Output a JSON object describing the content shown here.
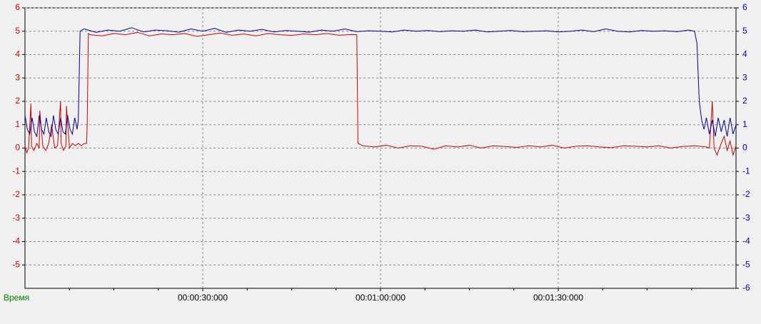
{
  "chart_data": {
    "type": "line",
    "x_label": "Время",
    "xlim": [
      0,
      120
    ],
    "xticks": [
      {
        "value": 30,
        "label": "00:00:30:000"
      },
      {
        "value": 60,
        "label": "00:01:00:000"
      },
      {
        "value": 90,
        "label": "00:01:30:000"
      }
    ],
    "xminorticks": [
      7.5,
      15,
      22.5,
      37.5,
      45,
      52.5,
      67.5,
      75,
      82.5,
      97.5,
      105,
      112.5
    ],
    "ylim": [
      -6,
      6
    ],
    "yticks": [
      6,
      5,
      4,
      3,
      2,
      1,
      0,
      -1,
      -2,
      -3,
      -4,
      -5
    ],
    "y2lim": [
      -6,
      6
    ],
    "y2ticks": [
      6,
      5,
      4,
      3,
      2,
      1,
      0,
      -1,
      -2,
      -3,
      -4,
      -5,
      -6
    ],
    "ycolor": "#cc0000",
    "y2color": "#0000b0",
    "xlabelcolor": "#008000",
    "grid": true,
    "series": [
      {
        "color": "#cc0000",
        "axis": "y",
        "x": [
          0,
          0.3,
          0.6,
          1.0,
          1.1,
          1.5,
          2.0,
          2.4,
          2.5,
          3.0,
          3.5,
          4.0,
          4.5,
          5.0,
          5.5,
          6.0,
          6.1,
          6.5,
          6.9,
          7.0,
          7.5,
          8.0,
          8.5,
          9.0,
          9.5,
          10.0,
          10.4,
          10.5,
          10.7,
          11,
          13,
          15,
          17,
          19,
          21,
          23,
          25,
          27,
          29,
          31,
          33,
          35,
          37,
          39,
          41,
          43,
          45,
          47,
          49,
          51,
          53,
          55,
          56.0,
          56.2,
          57,
          59,
          61,
          63,
          65,
          67,
          69,
          71,
          73,
          75,
          77,
          79,
          81,
          83,
          85,
          87,
          89,
          91,
          93,
          95,
          97,
          99,
          101,
          103,
          105,
          107,
          109,
          111,
          113,
          115,
          115.5,
          116,
          116.3,
          116.8,
          117.5,
          118,
          118.5,
          119,
          119.5,
          120
        ],
        "values": [
          0.1,
          -0.2,
          0.0,
          1.9,
          0.1,
          -0.1,
          0.2,
          0.0,
          1.6,
          0.1,
          -0.1,
          0.2,
          1.0,
          0.0,
          0.1,
          2.0,
          0.2,
          -0.1,
          0.1,
          1.8,
          0.0,
          0.2,
          0.1,
          0.2,
          0.1,
          0.2,
          0.2,
          1.0,
          4.9,
          4.85,
          4.8,
          4.9,
          4.85,
          4.95,
          4.8,
          4.88,
          4.85,
          4.9,
          4.78,
          4.85,
          4.92,
          4.83,
          4.88,
          4.8,
          4.9,
          4.85,
          4.82,
          4.88,
          4.85,
          4.9,
          4.83,
          4.86,
          4.85,
          0.2,
          0.1,
          0.05,
          0.12,
          0.0,
          0.1,
          0.08,
          -0.05,
          0.1,
          0.05,
          0.12,
          0.0,
          0.1,
          0.07,
          0.03,
          0.1,
          0.05,
          0.12,
          0.0,
          0.08,
          0.1,
          0.05,
          0.02,
          0.1,
          0.08,
          0.05,
          0.1,
          0.0,
          0.07,
          0.1,
          0.05,
          0.0,
          2.0,
          0.0,
          -0.3,
          0.2,
          0.5,
          -0.1,
          0.3,
          -0.3,
          0.1
        ]
      },
      {
        "color": "#000099",
        "axis": "y2",
        "x": [
          0,
          0.4,
          0.8,
          1.2,
          1.6,
          2.0,
          2.4,
          2.8,
          3.2,
          3.6,
          4.0,
          4.4,
          4.8,
          5.2,
          5.6,
          6.0,
          6.4,
          6.8,
          7.2,
          7.6,
          8.0,
          8.4,
          8.8,
          9.0,
          9.3,
          10,
          12,
          14,
          16,
          18,
          20,
          22,
          24,
          26,
          28,
          30,
          32,
          34,
          36,
          38,
          40,
          42,
          44,
          46,
          48,
          50,
          52,
          54,
          56,
          58,
          60,
          62,
          64,
          66,
          68,
          70,
          72,
          74,
          76,
          78,
          80,
          82,
          84,
          86,
          88,
          90,
          92,
          94,
          96,
          98,
          100,
          102,
          104,
          106,
          108,
          110,
          112,
          113,
          113.4,
          113.8,
          114.2,
          114.6,
          115,
          115.5,
          116,
          116.5,
          117,
          117.5,
          118,
          118.5,
          119,
          119.5,
          120
        ],
        "values": [
          1.4,
          0.8,
          0.6,
          1.3,
          0.7,
          0.5,
          1.4,
          0.8,
          0.6,
          1.3,
          0.7,
          0.5,
          1.4,
          0.8,
          0.6,
          1.3,
          0.7,
          0.6,
          1.4,
          0.8,
          0.6,
          1.3,
          0.8,
          1.2,
          5.0,
          5.1,
          4.95,
          5.05,
          5.0,
          5.15,
          4.97,
          5.05,
          5.02,
          4.96,
          5.1,
          5.0,
          5.12,
          4.95,
          5.05,
          5.0,
          5.08,
          4.97,
          5.03,
          5.0,
          4.96,
          5.05,
          5.0,
          5.1,
          4.98,
          5.02,
          5.0,
          4.97,
          5.05,
          5.0,
          5.03,
          4.98,
          5.02,
          5.0,
          5.05,
          4.97,
          5.0,
          5.03,
          4.98,
          5.0,
          5.02,
          4.97,
          5.0,
          5.05,
          4.98,
          5.1,
          5.0,
          4.97,
          5.03,
          5.0,
          5.02,
          4.98,
          5.05,
          5.0,
          4.5,
          2.0,
          1.2,
          0.8,
          1.3,
          0.6,
          1.2,
          0.5,
          1.3,
          0.7,
          1.2,
          0.5,
          1.3,
          0.6,
          1.0
        ]
      }
    ]
  }
}
